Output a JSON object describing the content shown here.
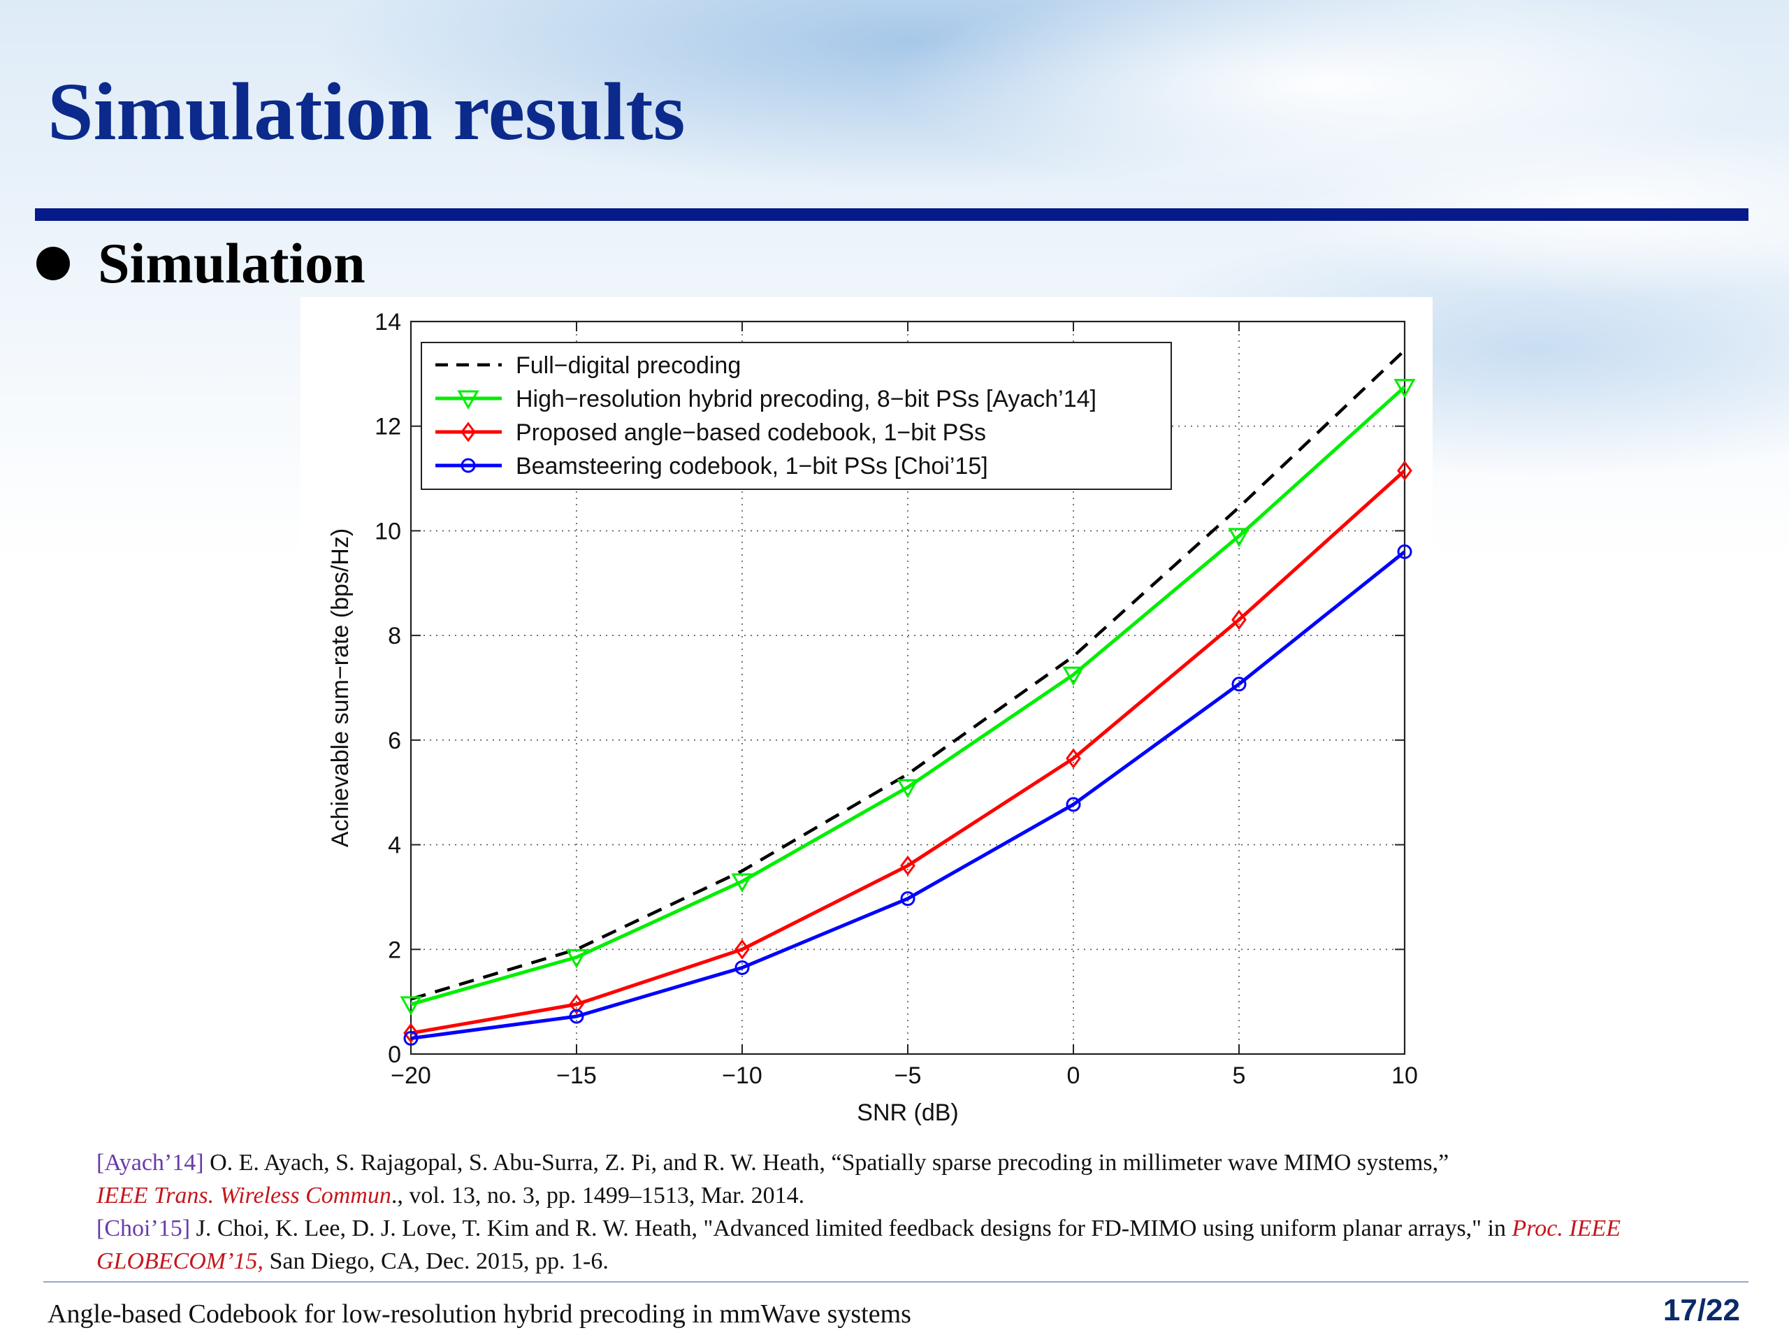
{
  "slide": {
    "title": "Simulation results",
    "bullet": "Simulation",
    "footer": "Angle-based Codebook for low-resolution hybrid precoding in mmWave systems",
    "page_number": "17/22",
    "accent_color": "#0b2a8c"
  },
  "references": [
    {
      "tag": "[Ayach’14]",
      "text": " O. E. Ayach, S. Rajagopal, S. Abu-Surra, Z. Pi, and R. W. Heath, “Spatially sparse precoding in millimeter wave MIMO systems,”",
      "venue": "IEEE Trans. Wireless Commun",
      "rest": "., vol. 13, no. 3, pp. 1499–1513, Mar. 2014."
    },
    {
      "tag": "[Choi’15]",
      "text": " J. Choi, K. Lee, D. J. Love, T. Kim and R. W. Heath, \"Advanced limited feedback designs for FD-MIMO using uniform  planar arrays,\" in ",
      "venue": "Proc. IEEE GLOBECOM’15,",
      "rest": " San Diego, CA, Dec. 2015, pp. 1-6."
    }
  ],
  "chart_data": {
    "type": "line",
    "xlabel": "SNR (dB)",
    "ylabel": "Achievable sum−rate (bps/Hz)",
    "xlim": [
      -20,
      10
    ],
    "ylim": [
      0,
      14
    ],
    "x": [
      -20,
      -15,
      -10,
      -5,
      0,
      5,
      10
    ],
    "xticks": [
      "−20",
      "−15",
      "−10",
      "−5",
      "0",
      "5",
      "10"
    ],
    "yticks": [
      "0",
      "2",
      "4",
      "6",
      "8",
      "10",
      "12",
      "14"
    ],
    "grid": true,
    "legend_position": "top-left",
    "series": [
      {
        "name": "Full−digital precoding",
        "color": "#000000",
        "dash": true,
        "marker": "none",
        "values": [
          1.05,
          2.0,
          3.5,
          5.35,
          7.6,
          10.45,
          13.45
        ]
      },
      {
        "name": "High−resolution hybrid precoding, 8−bit PSs [Ayach’14]",
        "color": "#00ee00",
        "dash": false,
        "marker": "triangle-down",
        "values": [
          0.95,
          1.85,
          3.3,
          5.1,
          7.25,
          9.9,
          12.75
        ]
      },
      {
        "name": "Proposed angle−based codebook, 1−bit PSs",
        "color": "#ff0000",
        "dash": false,
        "marker": "diamond",
        "values": [
          0.4,
          0.95,
          2.0,
          3.6,
          5.65,
          8.3,
          11.15
        ]
      },
      {
        "name": "Beamsteering codebook, 1−bit PSs [Choi’15]",
        "color": "#0000ff",
        "dash": false,
        "marker": "circle",
        "values": [
          0.3,
          0.72,
          1.65,
          2.97,
          4.77,
          7.07,
          9.6
        ]
      }
    ]
  }
}
